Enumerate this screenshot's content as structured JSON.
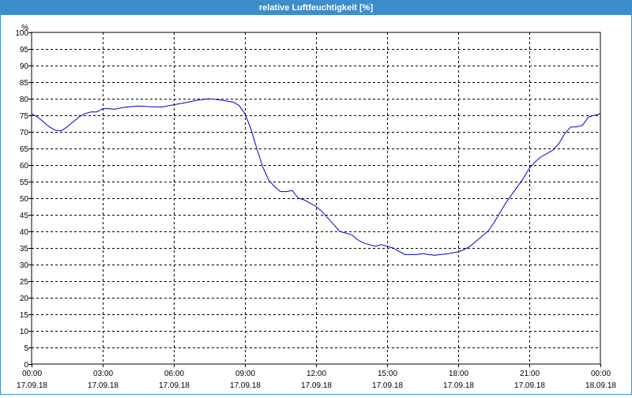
{
  "window": {
    "title": "relative Luftfeuchtigkeit [%]"
  },
  "chart_data": {
    "type": "line",
    "title": "relative Luftfeuchtigkeit [%]",
    "ylabel": "%",
    "xlabel": "",
    "ylim": [
      0,
      100
    ],
    "y_ticks": [
      0,
      5,
      10,
      15,
      20,
      25,
      30,
      35,
      40,
      45,
      50,
      55,
      60,
      65,
      70,
      75,
      80,
      85,
      90,
      95,
      100
    ],
    "x_ticks": [
      {
        "time": "00:00",
        "date": "17.09.18"
      },
      {
        "time": "03:00",
        "date": "17.09.18"
      },
      {
        "time": "06:00",
        "date": "17.09.18"
      },
      {
        "time": "09:00",
        "date": "17.09.18"
      },
      {
        "time": "12:00",
        "date": "17.09.18"
      },
      {
        "time": "15:00",
        "date": "17.09.18"
      },
      {
        "time": "18:00",
        "date": "17.09.18"
      },
      {
        "time": "21:00",
        "date": "17.09.18"
      },
      {
        "time": "00:00",
        "date": "18.09.18"
      }
    ],
    "xlim": [
      "17.09.18 00:00",
      "18.09.18 00:00"
    ],
    "grid": true,
    "line_color": "#0000cc",
    "series": [
      {
        "x": [
          "00:00",
          "00:15",
          "00:30",
          "00:45",
          "01:00",
          "01:15",
          "01:30",
          "01:45",
          "02:00",
          "02:15",
          "02:30",
          "02:45",
          "03:00",
          "03:15",
          "03:30",
          "03:45",
          "04:00",
          "04:30",
          "05:00",
          "05:30",
          "06:00",
          "06:30",
          "07:00",
          "07:30",
          "08:00",
          "08:30",
          "08:45",
          "09:00",
          "09:15",
          "09:30",
          "09:45",
          "10:00",
          "10:15",
          "10:30",
          "10:45",
          "11:00",
          "11:15",
          "11:30",
          "11:45",
          "12:00",
          "12:15",
          "12:30",
          "12:45",
          "13:00",
          "13:15",
          "13:30",
          "13:45",
          "14:00",
          "14:15",
          "14:30",
          "14:45",
          "15:00",
          "15:15",
          "15:30",
          "15:45",
          "16:00",
          "16:15",
          "16:30",
          "16:45",
          "17:00",
          "17:15",
          "17:30",
          "17:45",
          "18:00",
          "18:15",
          "18:30",
          "18:45",
          "19:00",
          "19:15",
          "19:30",
          "19:45",
          "20:00",
          "20:15",
          "20:30",
          "20:45",
          "21:00",
          "21:15",
          "21:30",
          "21:45",
          "22:00",
          "22:15",
          "22:30",
          "22:45",
          "23:00",
          "23:15",
          "23:30",
          "23:45",
          "24:00"
        ],
        "values": [
          75.5,
          74.5,
          73.0,
          71.5,
          70.5,
          70.3,
          71.5,
          73.0,
          74.5,
          75.5,
          76.0,
          76.0,
          77.0,
          77.0,
          76.8,
          77.2,
          77.5,
          77.8,
          77.6,
          77.5,
          78.2,
          78.8,
          79.6,
          80.0,
          79.6,
          79.0,
          78.0,
          75.5,
          71.0,
          65.0,
          59.5,
          55.5,
          53.5,
          52.0,
          52.0,
          52.3,
          50.0,
          49.5,
          48.5,
          47.5,
          46.0,
          44.0,
          42.0,
          40.0,
          39.5,
          39.0,
          37.5,
          36.5,
          36.0,
          35.5,
          36.0,
          35.5,
          35.0,
          34.0,
          33.0,
          33.0,
          33.0,
          33.3,
          33.0,
          32.8,
          33.0,
          33.2,
          33.5,
          33.8,
          34.5,
          35.5,
          37.0,
          38.5,
          40.0,
          42.5,
          45.5,
          48.5,
          51.0,
          53.5,
          56.0,
          59.0,
          61.0,
          62.5,
          63.5,
          64.5,
          66.5,
          69.5,
          71.5,
          71.5,
          72.0,
          74.5,
          75.0,
          75.5
        ]
      }
    ]
  }
}
